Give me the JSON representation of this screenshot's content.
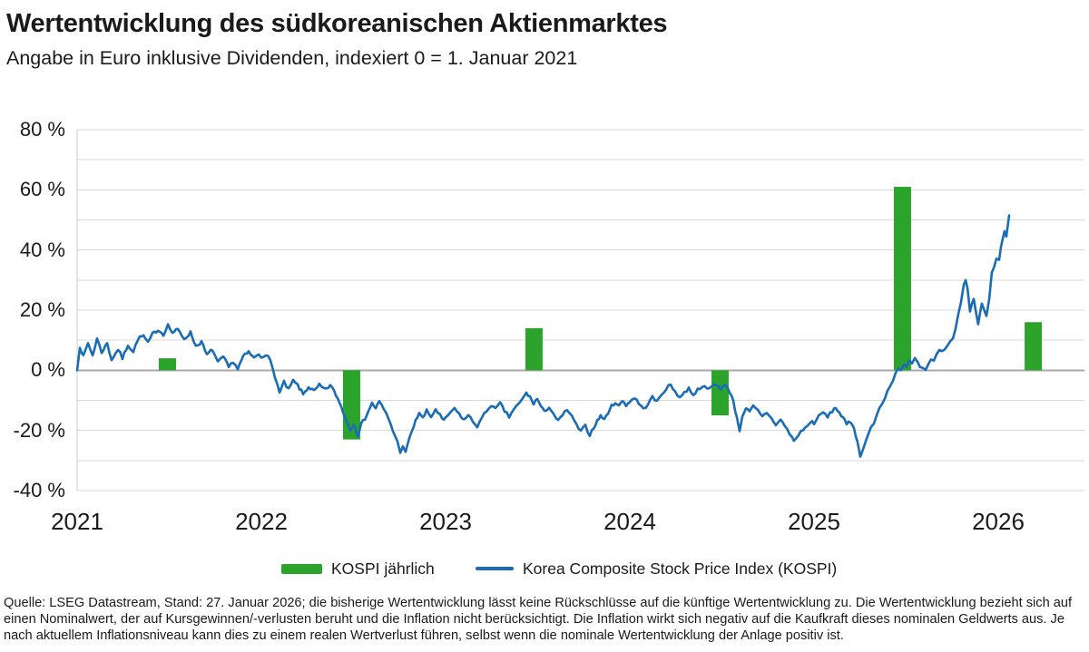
{
  "header": {
    "title": "Wertentwicklung des südkoreanischen Aktienmarktes",
    "subtitle": "Angabe in Euro inklusive Dividenden, indexiert 0 = 1. Januar 2021"
  },
  "colors": {
    "bar_green": "#2CA42C",
    "line_blue": "#1A6CB4",
    "grid": "#D9D9D9",
    "zero_line": "#A8A8A8",
    "axis_line": "#C9C9C9",
    "text": "#1a1a1a"
  },
  "legend": [
    {
      "label": "KOSPI jährlich",
      "swatch": "bar-swatch"
    },
    {
      "label": "Korea Composite Stock Price Index (KOSPI)",
      "swatch": "line-swatch"
    }
  ],
  "footer": {
    "text": "Quelle: LSEG Datastream, Stand: 27. Januar 2026; die bisherige Wertentwicklung lässt keine Rückschlüsse auf die künftige Wertentwicklung zu. Die Wertentwicklung bezieht sich auf einen Nominalwert, der auf Kursgewinnen/-verlusten beruht und die Inflation nicht berücksichtigt. Die Inflation wirkt sich negativ auf die Kaufkraft dieses nominalen Geldwerts aus. Je nach aktuellem Inflationsniveau kann dies zu einem realen Wertverlust führen, selbst wenn die nominale Wertentwicklung der Anlage positiv ist."
  },
  "chart_data": {
    "type": "line+bar",
    "title": "Wertentwicklung des südkoreanischen Aktienmarktes",
    "unit": "%",
    "grid_step": 10,
    "y_axis": {
      "labels": [
        "80 %",
        "60 %",
        "40 %",
        "20 %",
        "0 %",
        "-20 %",
        "-40 %"
      ],
      "values": [
        80,
        60,
        40,
        20,
        0,
        -20,
        -40
      ],
      "min": -40,
      "max": 80
    },
    "x_axis": {
      "labels": [
        "2021",
        "2022",
        "2023",
        "2024",
        "2025",
        "2026"
      ],
      "values": [
        2021,
        2022,
        2023,
        2024,
        2025,
        2026
      ]
    },
    "bars": {
      "name": "KOSPI jährlich",
      "points": [
        {
          "year": "2021",
          "t": 2021.49,
          "value": 4
        },
        {
          "year": "2022",
          "t": 2022.49,
          "value": -23
        },
        {
          "year": "2023",
          "t": 2023.48,
          "value": 14
        },
        {
          "year": "2024",
          "t": 2024.49,
          "value": -15
        },
        {
          "year": "2025",
          "t": 2025.48,
          "value": 61
        },
        {
          "year": "2026",
          "t": 2026.19,
          "value": 16
        }
      ]
    },
    "line": {
      "name": "Korea Composite Stock Price Index (KOSPI)",
      "points": [
        [
          2021.0,
          0
        ],
        [
          2021.015,
          8
        ],
        [
          2021.034,
          4.5
        ],
        [
          2021.059,
          9
        ],
        [
          2021.084,
          5
        ],
        [
          2021.108,
          10.5
        ],
        [
          2021.133,
          6
        ],
        [
          2021.163,
          9
        ],
        [
          2021.187,
          3.5
        ],
        [
          2021.222,
          7
        ],
        [
          2021.246,
          4
        ],
        [
          2021.276,
          8.5
        ],
        [
          2021.305,
          6
        ],
        [
          2021.33,
          10.5
        ],
        [
          2021.36,
          11.5
        ],
        [
          2021.384,
          9
        ],
        [
          2021.409,
          12
        ],
        [
          2021.438,
          13.5
        ],
        [
          2021.468,
          12
        ],
        [
          2021.493,
          15
        ],
        [
          2021.517,
          12.5
        ],
        [
          2021.547,
          13.5
        ],
        [
          2021.581,
          10.5
        ],
        [
          2021.616,
          12.5
        ],
        [
          2021.645,
          8
        ],
        [
          2021.675,
          9.5
        ],
        [
          2021.704,
          5
        ],
        [
          2021.734,
          7
        ],
        [
          2021.764,
          2.5
        ],
        [
          2021.793,
          4.5
        ],
        [
          2021.823,
          1
        ],
        [
          2021.847,
          3
        ],
        [
          2021.872,
          0.5
        ],
        [
          2021.901,
          4.5
        ],
        [
          2021.931,
          6
        ],
        [
          2021.96,
          4
        ],
        [
          2021.985,
          5.5
        ],
        [
          2022.0,
          4.5
        ],
        [
          2022.025,
          5.5
        ],
        [
          2022.049,
          3
        ],
        [
          2022.074,
          -2
        ],
        [
          2022.099,
          -7.5
        ],
        [
          2022.123,
          -4
        ],
        [
          2022.148,
          -6.5
        ],
        [
          2022.172,
          -3.5
        ],
        [
          2022.197,
          -5
        ],
        [
          2022.227,
          -8
        ],
        [
          2022.256,
          -5.5
        ],
        [
          2022.286,
          -7
        ],
        [
          2022.315,
          -5
        ],
        [
          2022.345,
          -6.5
        ],
        [
          2022.374,
          -5
        ],
        [
          2022.404,
          -8
        ],
        [
          2022.433,
          -12
        ],
        [
          2022.458,
          -16
        ],
        [
          2022.483,
          -20
        ],
        [
          2022.502,
          -17.5
        ],
        [
          2022.522,
          -21.5
        ],
        [
          2022.542,
          -18
        ],
        [
          2022.562,
          -16
        ],
        [
          2022.581,
          -13.5
        ],
        [
          2022.601,
          -11
        ],
        [
          2022.621,
          -12.5
        ],
        [
          2022.64,
          -10.5
        ],
        [
          2022.665,
          -13
        ],
        [
          2022.69,
          -16
        ],
        [
          2022.714,
          -20
        ],
        [
          2022.739,
          -24
        ],
        [
          2022.754,
          -27
        ],
        [
          2022.768,
          -25
        ],
        [
          2022.783,
          -27.5
        ],
        [
          2022.798,
          -24
        ],
        [
          2022.818,
          -20
        ],
        [
          2022.837,
          -17
        ],
        [
          2022.857,
          -14
        ],
        [
          2022.877,
          -16
        ],
        [
          2022.897,
          -13.5
        ],
        [
          2022.921,
          -15.5
        ],
        [
          2022.946,
          -13
        ],
        [
          2022.97,
          -15
        ],
        [
          2022.99,
          -17
        ],
        [
          2023.0,
          -16
        ],
        [
          2023.025,
          -14
        ],
        [
          2023.049,
          -13
        ],
        [
          2023.074,
          -14.5
        ],
        [
          2023.099,
          -16.5
        ],
        [
          2023.123,
          -15
        ],
        [
          2023.148,
          -17
        ],
        [
          2023.172,
          -18.5
        ],
        [
          2023.197,
          -16
        ],
        [
          2023.222,
          -13.5
        ],
        [
          2023.246,
          -11.5
        ],
        [
          2023.271,
          -13
        ],
        [
          2023.296,
          -11
        ],
        [
          2023.32,
          -13.5
        ],
        [
          2023.345,
          -15.5
        ],
        [
          2023.369,
          -13
        ],
        [
          2023.394,
          -11.5
        ],
        [
          2023.419,
          -9.5
        ],
        [
          2023.438,
          -7.5
        ],
        [
          2023.458,
          -9
        ],
        [
          2023.478,
          -11
        ],
        [
          2023.498,
          -9.5
        ],
        [
          2023.517,
          -12
        ],
        [
          2023.537,
          -14
        ],
        [
          2023.562,
          -12
        ],
        [
          2023.586,
          -14.5
        ],
        [
          2023.611,
          -17
        ],
        [
          2023.635,
          -15
        ],
        [
          2023.66,
          -13
        ],
        [
          2023.685,
          -15.5
        ],
        [
          2023.709,
          -18
        ],
        [
          2023.734,
          -20.5
        ],
        [
          2023.759,
          -18.5
        ],
        [
          2023.783,
          -21.5
        ],
        [
          2023.803,
          -19
        ],
        [
          2023.823,
          -17
        ],
        [
          2023.842,
          -15
        ],
        [
          2023.862,
          -16.5
        ],
        [
          2023.882,
          -14
        ],
        [
          2023.901,
          -12
        ],
        [
          2023.921,
          -10.5
        ],
        [
          2023.941,
          -12
        ],
        [
          2023.96,
          -10
        ],
        [
          2023.98,
          -11.5
        ],
        [
          2024.0,
          -10.5
        ],
        [
          2024.025,
          -9
        ],
        [
          2024.049,
          -11
        ],
        [
          2024.074,
          -13
        ],
        [
          2024.099,
          -11
        ],
        [
          2024.123,
          -9
        ],
        [
          2024.148,
          -10.5
        ],
        [
          2024.172,
          -8
        ],
        [
          2024.197,
          -6
        ],
        [
          2024.222,
          -5
        ],
        [
          2024.246,
          -7
        ],
        [
          2024.271,
          -9
        ],
        [
          2024.296,
          -7.5
        ],
        [
          2024.32,
          -6
        ],
        [
          2024.345,
          -8
        ],
        [
          2024.369,
          -6.5
        ],
        [
          2024.394,
          -5
        ],
        [
          2024.419,
          -6.5
        ],
        [
          2024.443,
          -5.5
        ],
        [
          2024.468,
          -4.5
        ],
        [
          2024.493,
          -6
        ],
        [
          2024.517,
          -5
        ],
        [
          2024.542,
          -7
        ],
        [
          2024.562,
          -10
        ],
        [
          2024.581,
          -16
        ],
        [
          2024.596,
          -20
        ],
        [
          2024.611,
          -15
        ],
        [
          2024.631,
          -12.5
        ],
        [
          2024.65,
          -14
        ],
        [
          2024.67,
          -12
        ],
        [
          2024.695,
          -13.5
        ],
        [
          2024.719,
          -15.5
        ],
        [
          2024.744,
          -14
        ],
        [
          2024.768,
          -16
        ],
        [
          2024.793,
          -18
        ],
        [
          2024.818,
          -16.5
        ],
        [
          2024.842,
          -18.5
        ],
        [
          2024.867,
          -21
        ],
        [
          2024.891,
          -23.5
        ],
        [
          2024.916,
          -21.5
        ],
        [
          2024.941,
          -19.5
        ],
        [
          2024.965,
          -18.5
        ],
        [
          2024.99,
          -17
        ],
        [
          2025.0,
          -17.5
        ],
        [
          2025.025,
          -15.5
        ],
        [
          2025.049,
          -14
        ],
        [
          2025.074,
          -15.5
        ],
        [
          2025.099,
          -13.5
        ],
        [
          2025.118,
          -12.5
        ],
        [
          2025.138,
          -14
        ],
        [
          2025.158,
          -16
        ],
        [
          2025.177,
          -18
        ],
        [
          2025.197,
          -17
        ],
        [
          2025.217,
          -19
        ],
        [
          2025.236,
          -24
        ],
        [
          2025.251,
          -29
        ],
        [
          2025.266,
          -26
        ],
        [
          2025.281,
          -23
        ],
        [
          2025.296,
          -21
        ],
        [
          2025.31,
          -19
        ],
        [
          2025.325,
          -17.5
        ],
        [
          2025.34,
          -15
        ],
        [
          2025.355,
          -13
        ],
        [
          2025.369,
          -11
        ],
        [
          2025.384,
          -9.5
        ],
        [
          2025.399,
          -7
        ],
        [
          2025.414,
          -5
        ],
        [
          2025.429,
          -3
        ],
        [
          2025.443,
          -1
        ],
        [
          2025.458,
          1
        ],
        [
          2025.473,
          0
        ],
        [
          2025.488,
          2
        ],
        [
          2025.502,
          1
        ],
        [
          2025.517,
          3
        ],
        [
          2025.532,
          2
        ],
        [
          2025.547,
          4
        ],
        [
          2025.562,
          2.5
        ],
        [
          2025.576,
          1
        ],
        [
          2025.591,
          0.5
        ],
        [
          2025.606,
          0
        ],
        [
          2025.621,
          2
        ],
        [
          2025.635,
          3.5
        ],
        [
          2025.65,
          3
        ],
        [
          2025.665,
          5
        ],
        [
          2025.68,
          6.5
        ],
        [
          2025.695,
          6
        ],
        [
          2025.709,
          6.5
        ],
        [
          2025.724,
          8
        ],
        [
          2025.739,
          9.5
        ],
        [
          2025.754,
          11
        ],
        [
          2025.768,
          14
        ],
        [
          2025.783,
          18
        ],
        [
          2025.798,
          23
        ],
        [
          2025.813,
          28
        ],
        [
          2025.823,
          30.5
        ],
        [
          2025.833,
          27
        ],
        [
          2025.847,
          19.5
        ],
        [
          2025.867,
          24
        ],
        [
          2025.891,
          15.5
        ],
        [
          2025.911,
          22
        ],
        [
          2025.936,
          18.5
        ],
        [
          2025.951,
          24
        ],
        [
          2025.965,
          32
        ],
        [
          2025.99,
          37.5
        ],
        [
          2026.005,
          37
        ],
        [
          2026.025,
          44.5
        ],
        [
          2026.034,
          46
        ],
        [
          2026.044,
          45
        ],
        [
          2026.059,
          51.5
        ]
      ]
    }
  }
}
